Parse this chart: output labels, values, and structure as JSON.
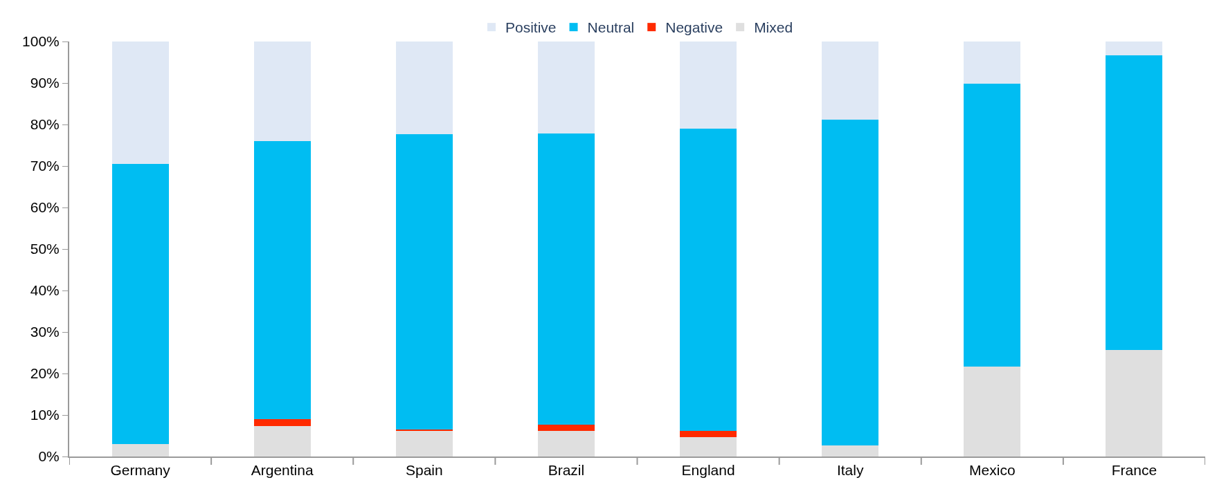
{
  "chart_data": {
    "type": "bar",
    "stacked": true,
    "categories": [
      "Germany",
      "Argentina",
      "Spain",
      "Brazil",
      "England",
      "Italy",
      "Mexico",
      "France"
    ],
    "series": [
      {
        "name": "Mixed",
        "color": "#dfdfdf",
        "values": [
          3.0,
          7.4,
          6.2,
          6.1,
          4.7,
          2.7,
          21.7,
          25.7
        ]
      },
      {
        "name": "Negative",
        "color": "#ff2a00",
        "values": [
          0,
          1.6,
          0.3,
          1.5,
          1.5,
          0,
          0,
          0
        ]
      },
      {
        "name": "Neutral",
        "color": "#00bdf2",
        "values": [
          67.5,
          67.0,
          71.1,
          70.2,
          72.8,
          78.5,
          68.2,
          71.0
        ]
      },
      {
        "name": "Positive",
        "color": "#dfe8f5",
        "values": [
          29.5,
          24.0,
          22.4,
          22.2,
          21.0,
          18.8,
          10.1,
          3.3
        ]
      }
    ],
    "ylim": [
      0,
      100
    ],
    "yticks": [
      {
        "value": 0,
        "label": "0%"
      },
      {
        "value": 10,
        "label": "10%"
      },
      {
        "value": 20,
        "label": "20%"
      },
      {
        "value": 30,
        "label": "30%"
      },
      {
        "value": 40,
        "label": "40%"
      },
      {
        "value": 50,
        "label": "50%"
      },
      {
        "value": 60,
        "label": "60%"
      },
      {
        "value": 70,
        "label": "70%"
      },
      {
        "value": 80,
        "label": "80%"
      },
      {
        "value": 90,
        "label": "90%"
      },
      {
        "value": 100,
        "label": "100%"
      }
    ],
    "grid": false,
    "legend": "top"
  }
}
